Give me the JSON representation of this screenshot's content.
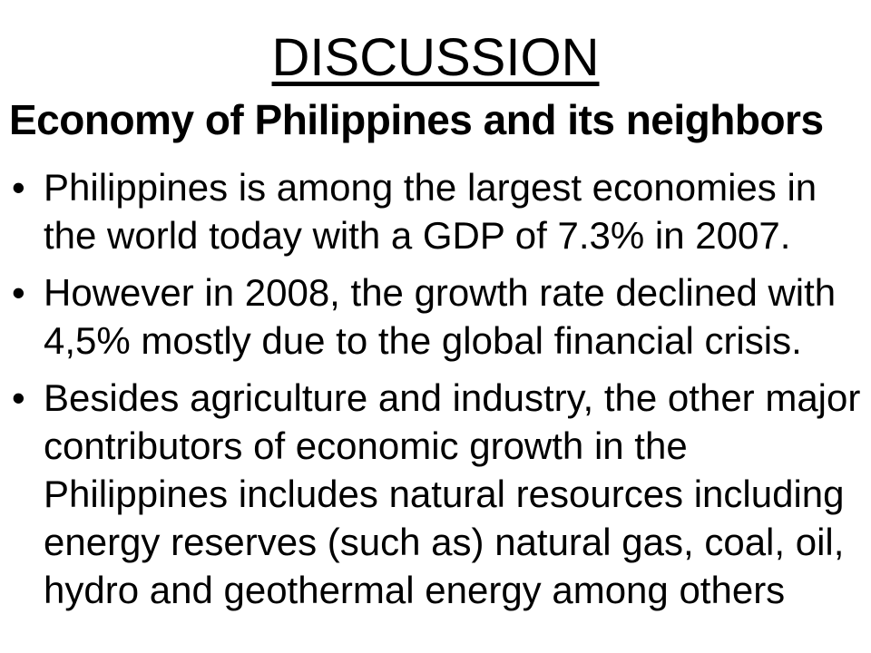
{
  "slide": {
    "title": "DISCUSSION",
    "heading": "Economy of Philippines and its neighbors",
    "bullets": [
      "Philippines is among the largest economies in the world today with a GDP of 7.3% in 2007.",
      "However in 2008, the growth rate declined with 4,5% mostly due to the global financial crisis.",
      "Besides agriculture and industry, the other major contributors of economic growth in the Philippines includes natural resources including energy reserves (such as) natural gas, coal, oil, hydro and geothermal energy among others"
    ],
    "bullet_glyph": "•",
    "colors": {
      "background": "#ffffff",
      "text": "#000000"
    }
  }
}
